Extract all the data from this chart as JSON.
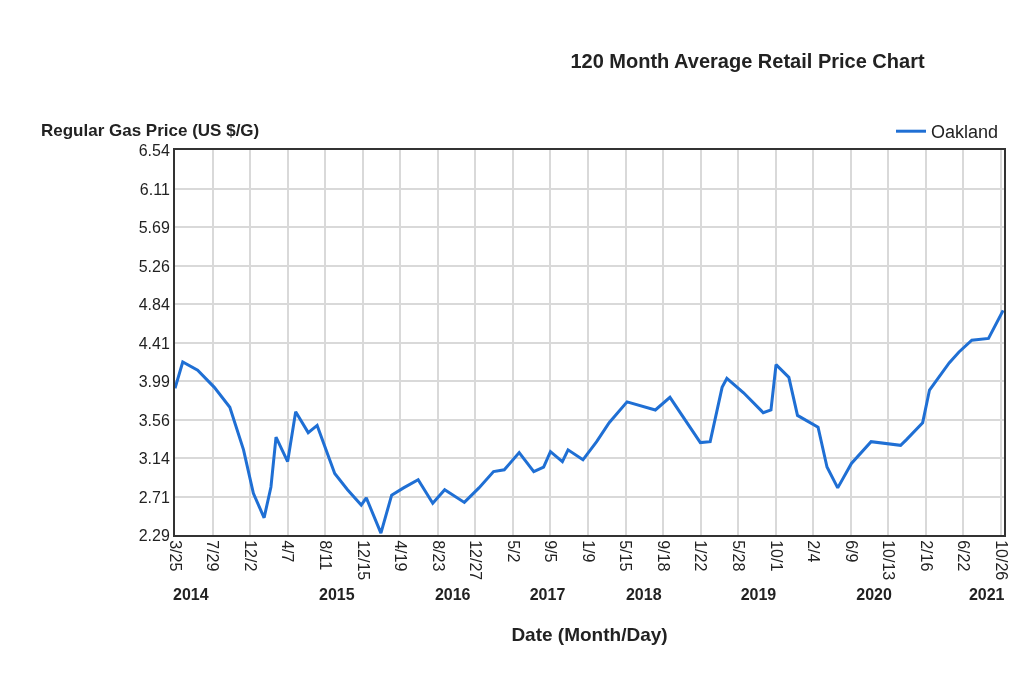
{
  "chart_data": {
    "type": "line",
    "title": "120 Month Average Retail Price Chart",
    "xlabel": "Date (Month/Day)",
    "ylabel": "Regular Gas Price (US $/G)",
    "x": [
      "2014-03-25",
      "2014-04-20",
      "2014-06-09",
      "2014-08-04",
      "2014-09-25",
      "2014-11-10",
      "2014-12-13",
      "2015-01-18",
      "2015-02-10",
      "2015-02-27",
      "2015-04-07",
      "2015-05-04",
      "2015-06-15",
      "2015-07-15",
      "2015-09-12",
      "2015-10-25",
      "2015-12-10",
      "2015-12-27",
      "2016-02-14",
      "2016-03-21",
      "2016-04-30",
      "2016-06-18",
      "2016-08-06",
      "2016-09-15",
      "2016-11-20",
      "2017-01-08",
      "2017-02-26",
      "2017-04-03",
      "2017-05-23",
      "2017-07-11",
      "2017-08-13",
      "2017-09-05",
      "2017-10-15",
      "2017-11-03",
      "2017-12-23",
      "2018-02-07",
      "2018-03-21",
      "2018-05-20",
      "2018-08-23",
      "2018-10-11",
      "2019-01-21",
      "2019-02-23",
      "2019-04-04",
      "2019-04-20",
      "2019-06-15",
      "2019-08-20",
      "2019-09-15",
      "2019-10-02",
      "2019-11-14",
      "2019-12-13",
      "2020-02-20",
      "2020-03-21",
      "2020-04-26",
      "2020-06-11",
      "2020-08-16",
      "2020-11-23",
      "2020-12-12",
      "2021-02-05",
      "2021-02-28",
      "2021-05-05",
      "2021-06-07",
      "2021-07-20",
      "2021-09-14",
      "2021-11-02"
    ],
    "series": [
      {
        "name": "Oakland",
        "color": "#1f6fd4",
        "values": [
          3.91,
          4.2,
          4.11,
          3.92,
          3.7,
          3.23,
          2.75,
          2.48,
          2.82,
          3.37,
          3.1,
          3.65,
          3.42,
          3.5,
          2.97,
          2.79,
          2.62,
          2.7,
          2.31,
          2.73,
          2.81,
          2.9,
          2.64,
          2.79,
          2.65,
          2.81,
          2.99,
          3.01,
          3.2,
          2.99,
          3.04,
          3.21,
          3.1,
          3.23,
          3.12,
          3.32,
          3.53,
          3.76,
          3.67,
          3.81,
          3.31,
          3.32,
          3.92,
          4.02,
          3.86,
          3.64,
          3.67,
          4.17,
          4.03,
          3.61,
          3.48,
          3.04,
          2.81,
          3.08,
          3.32,
          3.28,
          3.34,
          3.53,
          3.89,
          4.19,
          4.31,
          4.44,
          4.46,
          4.77
        ]
      }
    ],
    "xlim": [
      "2014-03-25",
      "2021-11-05"
    ],
    "xticks": [
      {
        "value": "2014-03-25",
        "label": "3/25"
      },
      {
        "value": "2014-07-29",
        "label": "7/29"
      },
      {
        "value": "2014-12-02",
        "label": "12/2"
      },
      {
        "value": "2015-04-07",
        "label": "4/7"
      },
      {
        "value": "2015-08-11",
        "label": "8/11"
      },
      {
        "value": "2015-12-15",
        "label": "12/15"
      },
      {
        "value": "2016-04-19",
        "label": "4/19"
      },
      {
        "value": "2016-08-23",
        "label": "8/23"
      },
      {
        "value": "2016-12-27",
        "label": "12/27"
      },
      {
        "value": "2017-05-02",
        "label": "5/2"
      },
      {
        "value": "2017-09-05",
        "label": "9/5"
      },
      {
        "value": "2018-01-09",
        "label": "1/9"
      },
      {
        "value": "2018-05-15",
        "label": "5/15"
      },
      {
        "value": "2018-09-18",
        "label": "9/18"
      },
      {
        "value": "2019-01-22",
        "label": "1/22"
      },
      {
        "value": "2019-05-28",
        "label": "5/28"
      },
      {
        "value": "2019-10-01",
        "label": "10/1"
      },
      {
        "value": "2020-02-04",
        "label": "2/4"
      },
      {
        "value": "2020-06-09",
        "label": "6/9"
      },
      {
        "value": "2020-10-13",
        "label": "10/13"
      },
      {
        "value": "2021-02-16",
        "label": "2/16"
      },
      {
        "value": "2021-06-22",
        "label": "6/22"
      },
      {
        "value": "2021-10-26",
        "label": "10/26"
      }
    ],
    "x2lim": [
      "2014-03-25",
      "2021-11-05"
    ],
    "x2ticks": [
      {
        "value": "2014-05-17",
        "label": "2014"
      },
      {
        "value": "2015-09-19",
        "label": "2015"
      },
      {
        "value": "2016-10-12",
        "label": "2016"
      },
      {
        "value": "2017-08-26",
        "label": "2017"
      },
      {
        "value": "2018-07-15",
        "label": "2018"
      },
      {
        "value": "2019-08-04",
        "label": "2019"
      },
      {
        "value": "2020-08-26",
        "label": "2020"
      },
      {
        "value": "2021-09-08",
        "label": "2021"
      }
    ],
    "ylim": [
      2.29,
      6.54
    ],
    "yticks": [
      2.29,
      2.71,
      3.14,
      3.56,
      3.99,
      4.41,
      4.84,
      5.26,
      5.69,
      6.11,
      6.54
    ],
    "grid": true,
    "legend": "top right",
    "line_style": "solid",
    "marker": "none"
  }
}
